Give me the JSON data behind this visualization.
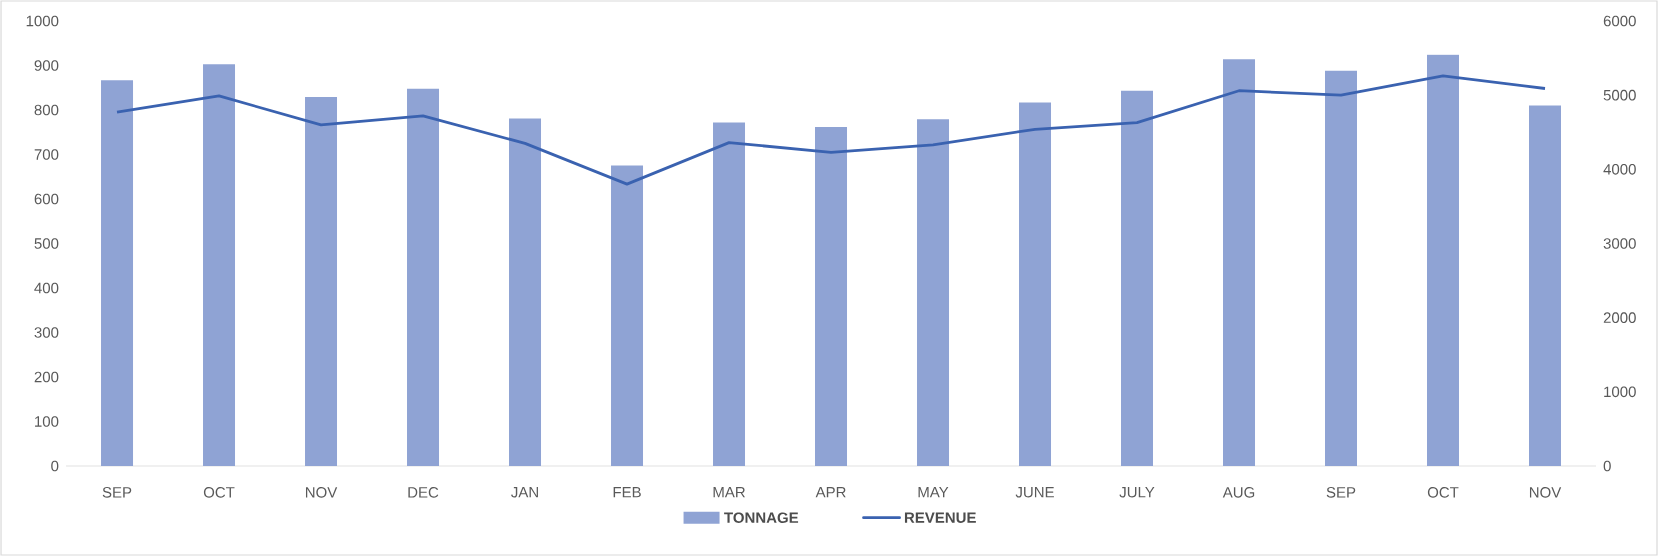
{
  "chart_data": {
    "type": "bar",
    "categories": [
      "SEP",
      "OCT",
      "NOV",
      "DEC",
      "JAN",
      "FEB",
      "MAR",
      "APR",
      "MAY",
      "JUNE",
      "JULY",
      "AUG",
      "SEP",
      "OCT",
      "NOV"
    ],
    "series": [
      {
        "name": "TONNAGE",
        "color": "#8fa3d4",
        "values": [
          867,
          903,
          829,
          848,
          781,
          675,
          772,
          762,
          779,
          817,
          843,
          914,
          888,
          924,
          810
        ]
      },
      {
        "name": "REVENUE",
        "type": "line",
        "axis": "y2",
        "color": "#3a62b0",
        "values": [
          4770,
          4990,
          4600,
          4720,
          4350,
          3800,
          4360,
          4230,
          4330,
          4540,
          4630,
          5060,
          5000,
          5260,
          5090
        ]
      }
    ],
    "ylim": [
      0,
      1000
    ],
    "yticks": [
      0,
      100,
      200,
      300,
      400,
      500,
      600,
      700,
      800,
      900,
      1000
    ],
    "y2lim": [
      0,
      6000
    ],
    "y2ticks": [
      0,
      1000,
      2000,
      3000,
      4000,
      5000,
      6000
    ],
    "legend": "bottom"
  }
}
